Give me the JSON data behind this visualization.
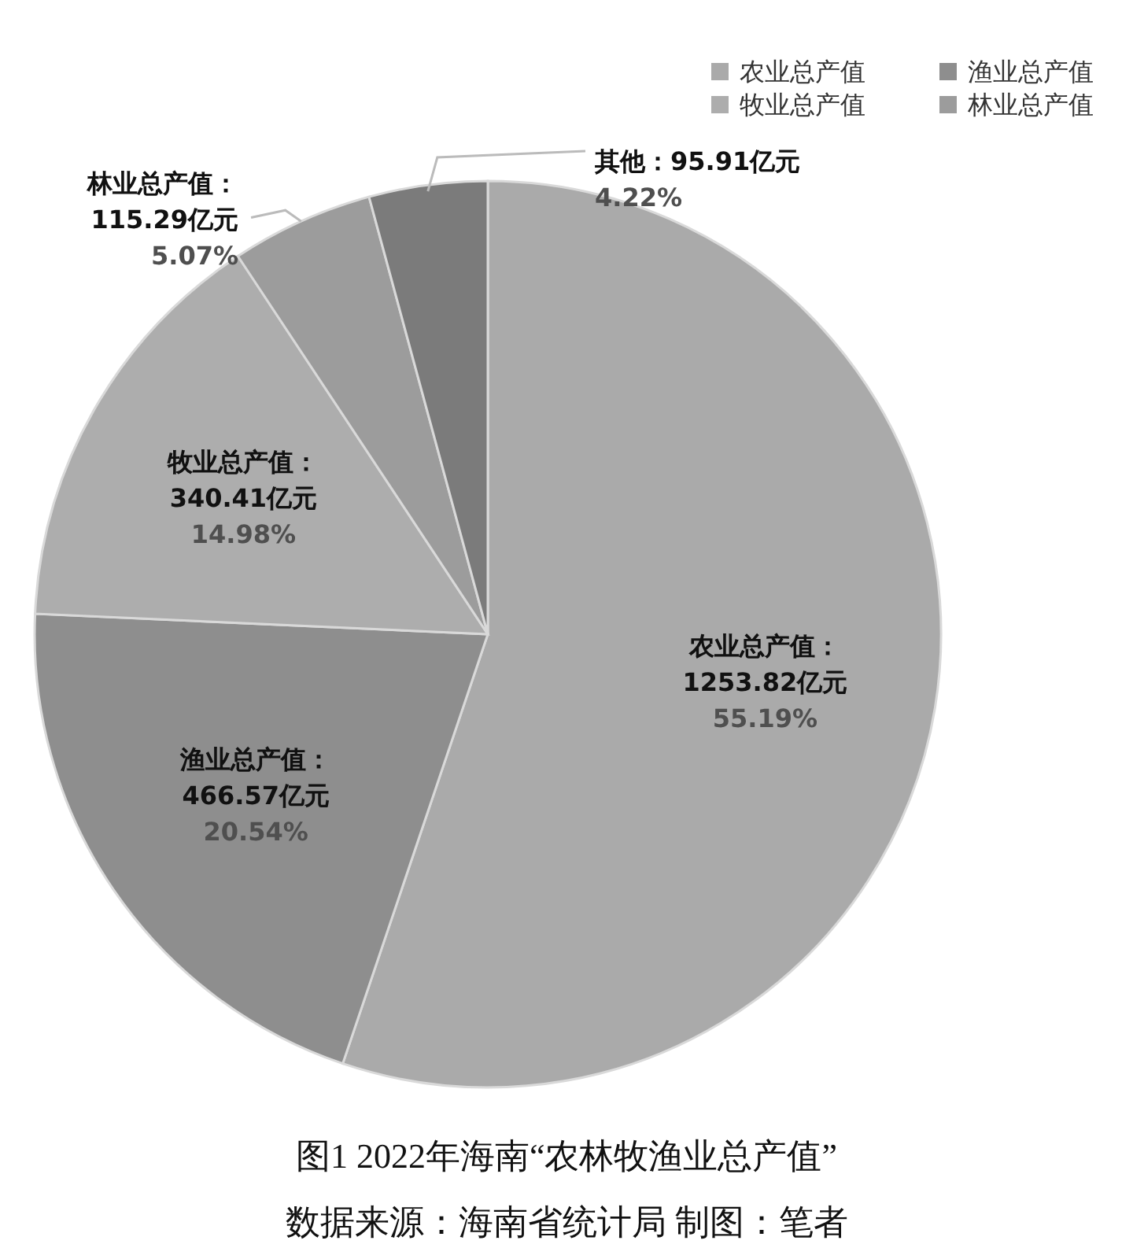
{
  "chart_data": {
    "type": "pie",
    "title": "图1 2022年海南“农林牧渔业总产值”",
    "annotations": [
      "数据来源：海南省统计局 制图：笔者"
    ],
    "categories": [
      "农业总产值",
      "渔业总产值",
      "牧业总产值",
      "林业总产值",
      "其他"
    ],
    "values": [
      1253.82,
      466.57,
      340.41,
      115.29,
      95.91
    ],
    "colors": [
      "#aaaaaa",
      "#8e8e8e",
      "#adadad",
      "#9c9c9c",
      "#7b7b7b"
    ],
    "value_labels": [
      "：\n1253.82亿元\n55.19%",
      "：\n466.57亿元\n20.54%",
      "：\n340.41亿元\n14.98%",
      "：\n115.29亿元\n5.07%",
      "：95.91亿元\n4.22%"
    ],
    "legend": "top right"
  }
}
